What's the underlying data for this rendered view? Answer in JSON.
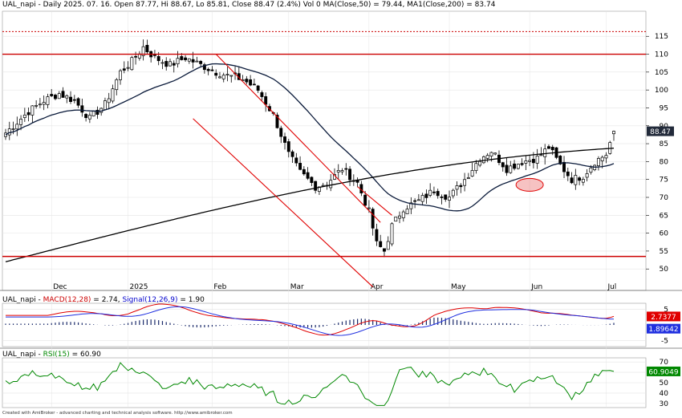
{
  "header": {
    "main": "UAL_napi - Daily 2025. 07. 16. Open 87.77, Hi 88.67, Lo 85.81, Close 88.47 (2.4%) Vol 0 MA(Close,50) = 79.44, MA1(Close,200) = 83.74",
    "macd_prefix": "UAL_napi - ",
    "macd_name": "MACD(12,28)",
    "macd_value": " = 2.74, ",
    "signal_name": "Signal(12,26,9)",
    "signal_value": " = 1.90",
    "rsi_prefix": "UAL_napi - ",
    "rsi_name": "RSI(15)",
    "rsi_value": " = 60.90"
  },
  "footer": "Created with AmiBroker - advanced charting and technical analysis software. http://www.amibroker.com",
  "colors": {
    "candle": "#000000",
    "up_fill": "#ffffff",
    "ma50": "#0a1a3a",
    "ma200": "#000000",
    "channel": "#e00000",
    "hline": "#cc0000",
    "macd": "#e00000",
    "signal": "#2030e0",
    "rsi": "#008800",
    "grid": "#e4e4e4"
  },
  "chart_data": [
    {
      "type": "candlestick",
      "title": "UAL_napi - Daily 2025. 07. 16.",
      "ylim": [
        44,
        122
      ],
      "y_ticks": [
        50,
        55,
        60,
        65,
        70,
        75,
        80,
        85,
        90,
        95,
        100,
        105,
        110,
        115
      ],
      "x_ticks": [
        "Dec",
        "2025",
        "Feb",
        "Mar",
        "Apr",
        "May",
        "Jun",
        "Jul"
      ],
      "last_close_label": "88.47",
      "horizontal_lines": [
        110,
        53.5
      ],
      "dotted_line": 116.3,
      "last_bar": {
        "open": 87.77,
        "high": 88.67,
        "low": 85.81,
        "close": 88.47
      },
      "ma50_last": 79.44,
      "ma200_last": 83.74
    },
    {
      "type": "line",
      "title": "MACD(12,28)",
      "series": [
        {
          "name": "MACD(12,28)",
          "last": 2.74,
          "label": "2.7377"
        },
        {
          "name": "Signal(12,26,9)",
          "last": 1.9,
          "label": "1.89642"
        }
      ],
      "y_ticks": [
        5,
        -5
      ]
    },
    {
      "type": "line",
      "title": "RSI(15)",
      "series": [
        {
          "name": "RSI(15)",
          "last": 60.9,
          "label": "60.9049"
        }
      ],
      "y_ticks": [
        70,
        60,
        50,
        40,
        30
      ]
    }
  ]
}
